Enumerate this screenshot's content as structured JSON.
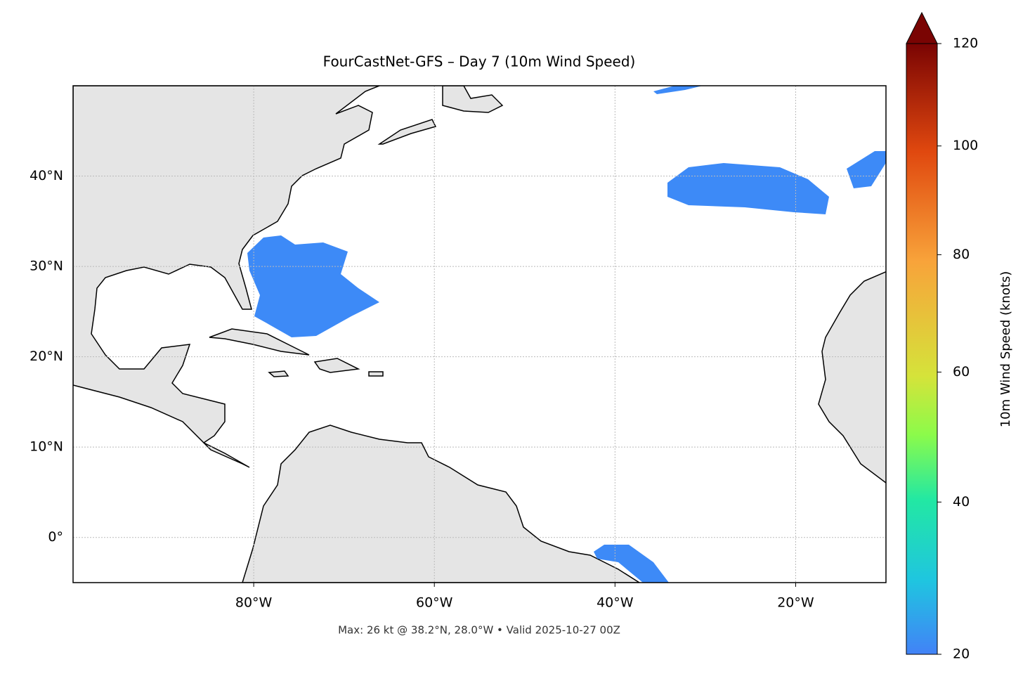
{
  "chart_data": {
    "type": "map",
    "title": "FourCastNet-GFS – Day 7 (10m Wind Speed)",
    "annotation": "Max: 26 kt @ 38.2°N, 28.0°W • Valid 2025-10-27 00Z",
    "xlim": [
      -100,
      -10
    ],
    "ylim": [
      -5,
      50
    ],
    "xticks": [
      {
        "value": -80,
        "label": "80°W"
      },
      {
        "value": -60,
        "label": "60°W"
      },
      {
        "value": -40,
        "label": "40°W"
      },
      {
        "value": -20,
        "label": "20°W"
      }
    ],
    "yticks": [
      {
        "value": 0,
        "label": "0°"
      },
      {
        "value": 10,
        "label": "10°N"
      },
      {
        "value": 20,
        "label": "20°N"
      },
      {
        "value": 30,
        "label": "30°N"
      },
      {
        "value": 40,
        "label": "40°N"
      }
    ],
    "grid": true,
    "colorbar": {
      "label": "10m Wind Speed (knots)",
      "lim": [
        20,
        120
      ],
      "ticks": [
        20,
        40,
        60,
        80,
        100,
        120
      ],
      "gamma": 0.7
    }
  }
}
